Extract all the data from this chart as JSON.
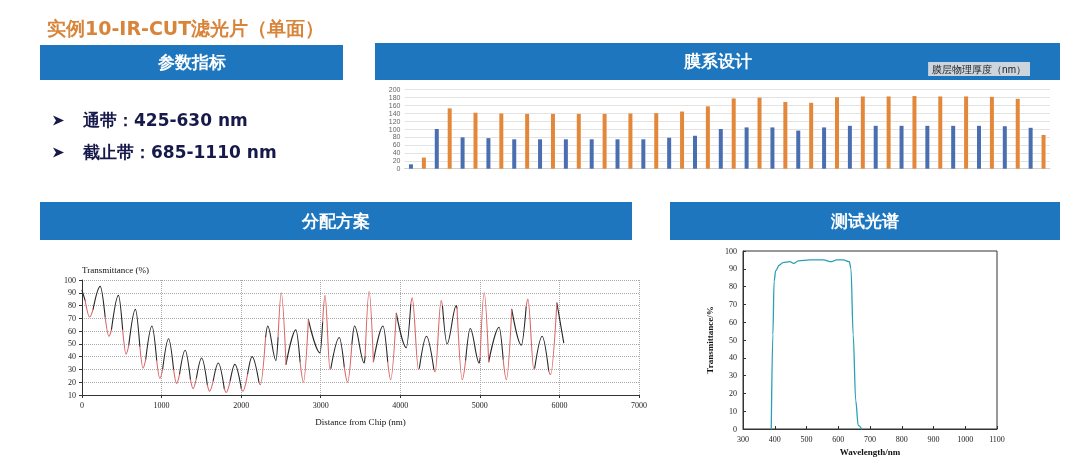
{
  "chart_data": [
    {
      "type": "other",
      "title": "实例10-IR-CUT滤光片（单面）",
      "subtitle": "参数指标",
      "annotations": [
        "通带：425-630 nm",
        "截止带：685-1110 nm"
      ]
    },
    {
      "type": "bar",
      "title": "膜系设计",
      "ylabel": "膜层物理厚度（nm）",
      "categories": [
        null,
        null,
        null,
        null,
        null,
        null,
        null,
        null,
        null,
        null,
        null,
        null,
        null,
        null,
        null,
        null,
        null,
        null,
        null,
        null,
        null,
        null,
        null,
        null,
        null,
        null,
        null,
        null,
        null,
        null,
        null,
        null,
        null,
        null,
        null,
        null,
        null,
        null,
        null,
        null,
        null,
        null,
        null,
        null,
        null,
        null,
        null,
        null,
        null,
        null
      ],
      "values": [
        11,
        28,
        100,
        152,
        79,
        141,
        77,
        139,
        74,
        138,
        74,
        138,
        74,
        138,
        74,
        138,
        74,
        139,
        74,
        140,
        78,
        144,
        83,
        157,
        100,
        177,
        104,
        179,
        104,
        168,
        96,
        166,
        104,
        180,
        108,
        182,
        108,
        182,
        108,
        183,
        108,
        182,
        108,
        182,
        108,
        181,
        107,
        176,
        103,
        85
      ],
      "colors": [
        "#4a6fb0",
        "#e3883a",
        "#4a6fb0",
        "#e3883a",
        "#4a6fb0",
        "#e3883a",
        "#4a6fb0",
        "#e3883a",
        "#4a6fb0",
        "#e3883a",
        "#4a6fb0",
        "#e3883a",
        "#4a6fb0",
        "#e3883a",
        "#4a6fb0",
        "#e3883a",
        "#4a6fb0",
        "#e3883a",
        "#4a6fb0",
        "#e3883a",
        "#4a6fb0",
        "#e3883a",
        "#4a6fb0",
        "#e3883a",
        "#4a6fb0",
        "#e3883a",
        "#4a6fb0",
        "#e3883a",
        "#4a6fb0",
        "#e3883a",
        "#4a6fb0",
        "#e3883a",
        "#4a6fb0",
        "#e3883a",
        "#4a6fb0",
        "#e3883a",
        "#4a6fb0",
        "#e3883a",
        "#4a6fb0",
        "#e3883a",
        "#4a6fb0",
        "#e3883a",
        "#4a6fb0",
        "#e3883a",
        "#4a6fb0",
        "#e3883a",
        "#4a6fb0",
        "#e3883a",
        "#4a6fb0",
        "#e3883a"
      ],
      "ylim": [
        0,
        200
      ],
      "yticks": [
        0,
        20,
        40,
        60,
        80,
        100,
        120,
        140,
        160,
        180,
        200
      ],
      "grid": "y"
    },
    {
      "type": "line",
      "title": "分配方案",
      "xlabel": "Distance from Chip (nm)",
      "ylabel": "Transmittance (%)",
      "x": [
        0,
        39,
        96,
        139,
        229,
        291,
        338,
        370,
        458,
        511,
        554,
        588,
        671,
        727,
        767,
        801,
        879,
        939,
        979,
        1013,
        1088,
        1151,
        1188,
        1225,
        1296,
        1363,
        1396,
        1437,
        1504,
        1575,
        1604,
        1649,
        1713,
        1788,
        1813,
        1862,
        1921,
        2002,
        2021,
        2080,
        2138,
        2224,
        2242,
        2307,
        2333,
        2438,
        2464,
        2504,
        2564,
        2688,
        2741,
        2783,
        2845,
        2992,
        3024,
        3054,
        3117,
        3128,
        3233,
        3296,
        3338,
        3392,
        3425,
        3546,
        3558,
        3608,
        3662,
        3783,
        3842,
        3879,
        3950,
        4075,
        4132,
        4150,
        4229,
        4240,
        4329,
        4422,
        4438,
        4513,
        4530,
        4588,
        4704,
        4713,
        4779,
        4821,
        4879,
        4992,
        5003,
        5054,
        5111,
        5242,
        5293,
        5333,
        5401,
        5521,
        5582,
        5604,
        5679,
        5689,
        5783,
        5865,
        5888,
        5968,
        6054
      ],
      "series": [
        {
          "color": "#262626",
          "values": [
            92,
            84,
            null,
            77,
            95,
            71,
            null,
            61,
            88,
            61,
            null,
            49,
            77,
            48,
            null,
            38,
            64,
            37,
            null,
            30,
            54,
            30,
            null,
            26,
            45,
            22,
            null,
            23,
            39,
            18,
            null,
            21,
            35,
            15,
            null,
            21,
            34,
            15,
            null,
            26,
            40,
            20,
            null,
            55,
            64,
            37,
            55,
            null,
            34,
            61,
            36,
            null,
            69,
            43,
            67,
            null,
            null,
            31,
            55,
            32,
            null,
            50,
            64,
            35,
            40,
            null,
            36,
            64,
            36,
            null,
            74,
            47,
            81,
            null,
            null,
            31,
            56,
            30,
            null,
            null,
            80,
            50,
            80,
            78,
            null,
            37,
            62,
            35,
            39,
            null,
            36,
            63,
            38,
            null,
            77,
            49,
            79,
            null,
            null,
            31,
            56,
            29,
            null,
            82,
            51
          ]
        },
        {
          "color": "#d9686a",
          "values": [
            null,
            84,
            71,
            77,
            null,
            71,
            56,
            61,
            null,
            61,
            42,
            49,
            null,
            48,
            31,
            38,
            null,
            37,
            23,
            30,
            null,
            30,
            19,
            26,
            null,
            22,
            15,
            23,
            null,
            18,
            13,
            21,
            null,
            15,
            12,
            21,
            null,
            15,
            13,
            26,
            null,
            20,
            18,
            55,
            null,
            null,
            55,
            90,
            34,
            null,
            36,
            20,
            69,
            null,
            67,
            88,
            30,
            31,
            null,
            32,
            20,
            50,
            null,
            null,
            40,
            91,
            36,
            null,
            36,
            22,
            74,
            null,
            81,
            86,
            30,
            31,
            null,
            30,
            28,
            84,
            80,
            null,
            null,
            78,
            22,
            37,
            null,
            null,
            39,
            90,
            36,
            null,
            38,
            22,
            77,
            null,
            79,
            85,
            30,
            31,
            null,
            29,
            26,
            82,
            null
          ]
        }
      ],
      "xlim": [
        0,
        7000
      ],
      "xticks": [
        0,
        1000,
        2000,
        3000,
        4000,
        5000,
        6000,
        7000
      ],
      "ylim": [
        10,
        100
      ],
      "yticks": [
        10,
        20,
        30,
        40,
        50,
        60,
        70,
        80,
        90,
        100
      ],
      "grid": true
    },
    {
      "type": "line",
      "title": "测试光谱",
      "xlabel": "Wavelength/nm",
      "ylabel": "Transmittance/%",
      "x": [
        389,
        394,
        398,
        403,
        414,
        426,
        447,
        460,
        474,
        511,
        553,
        579,
        595,
        616,
        635,
        640,
        647,
        655,
        663,
        674
      ],
      "values": [
        0,
        53,
        83,
        89,
        92,
        93.5,
        94,
        93,
        94.5,
        95,
        95,
        94,
        95,
        95,
        94,
        90,
        53,
        16,
        2,
        0
      ],
      "color": "#2aa0b4",
      "xlim": [
        300,
        1100
      ],
      "xticks": [
        300,
        400,
        500,
        600,
        700,
        800,
        900,
        1000,
        1100
      ],
      "ylim": [
        0,
        100
      ],
      "yticks": [
        0,
        10,
        20,
        30,
        40,
        50,
        60,
        70,
        80,
        90,
        100
      ]
    }
  ]
}
